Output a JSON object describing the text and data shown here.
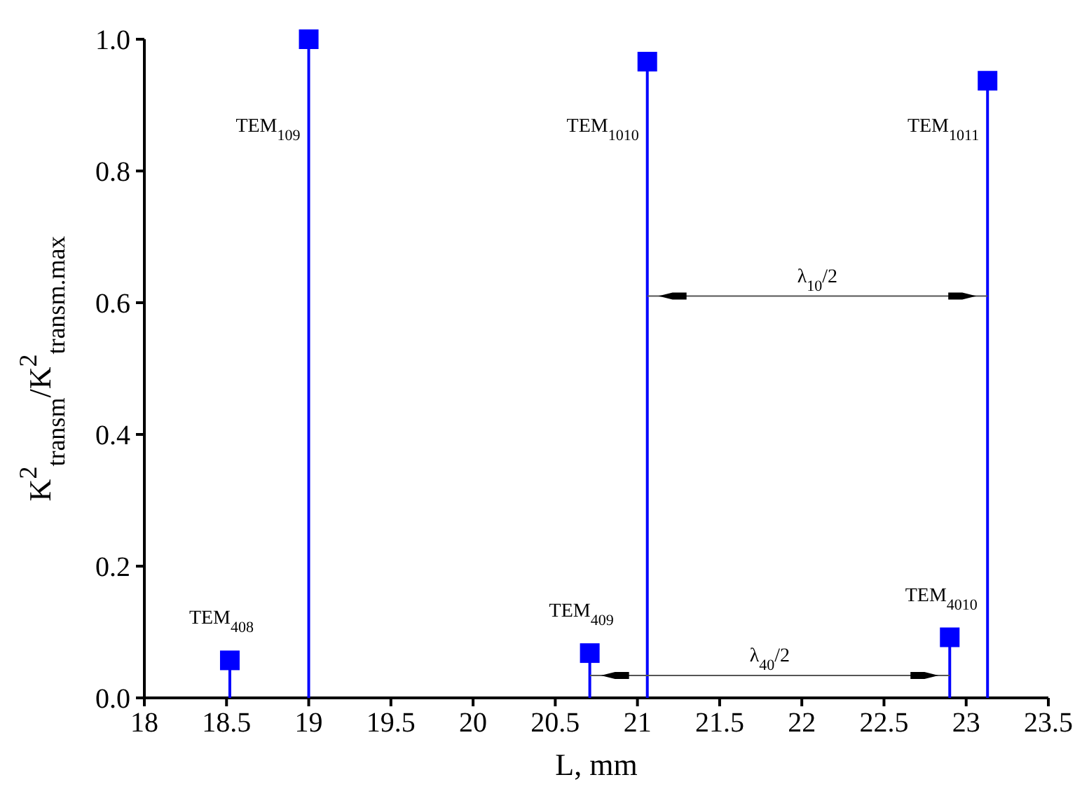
{
  "chart_data": {
    "type": "lollipop",
    "xlabel": "L, mm",
    "ylabel": "K$^{2}$$_{transm}$/K$^{2}$$_{transm.max}$",
    "x": [
      18.52,
      19.0,
      20.71,
      21.06,
      22.9,
      23.13
    ],
    "series": [
      {
        "color": "#0000ff",
        "values": [
          0.057,
          1.0,
          0.068,
          0.966,
          0.092,
          0.937
        ]
      }
    ],
    "marker": "square",
    "xlim": [
      18,
      23.5
    ],
    "xticks": [
      18,
      18.5,
      19,
      19.5,
      20,
      20.5,
      21,
      21.5,
      22,
      22.5,
      23,
      23.5
    ],
    "ylim": [
      0,
      1.0
    ],
    "yticks": [
      {
        "value": 0,
        "label": "0.0"
      },
      0.2,
      0.4,
      0.6,
      0.8,
      {
        "value": 1,
        "label": "1.0"
      }
    ],
    "annotations": [
      "TEM$_{408}$",
      "TEM$_{109}$",
      "TEM$_{409}$",
      "TEM$_{1010}$",
      "TEM$_{4010}$",
      "TEM$_{1011}$",
      "λ$_{10}$/2",
      "λ$_{40}$/2"
    ]
  }
}
